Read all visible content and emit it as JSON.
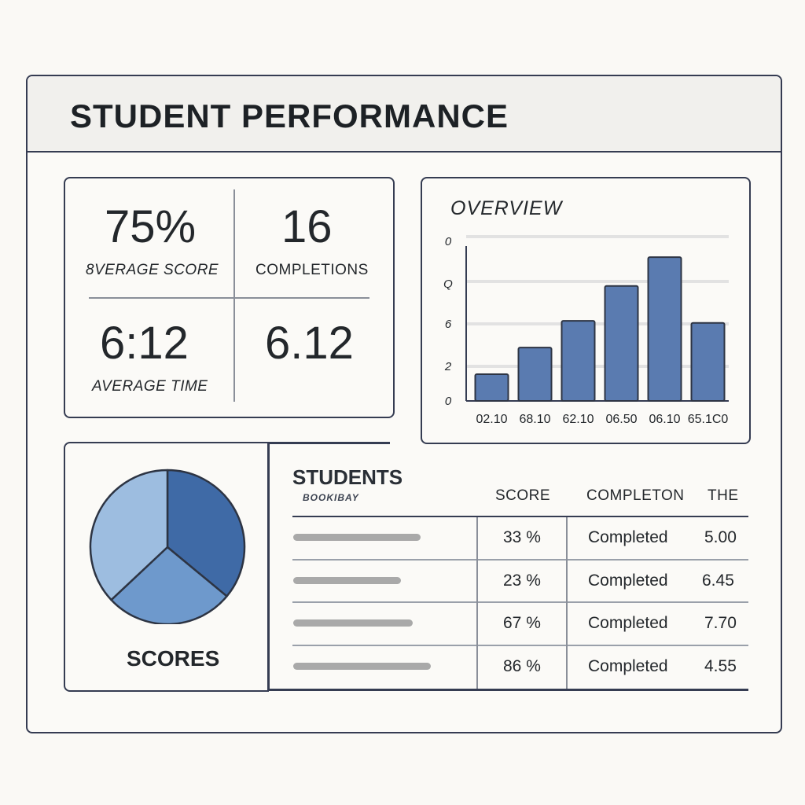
{
  "header": {
    "title": "STUDENT PERFORMANCE"
  },
  "stats": [
    {
      "value": "75%",
      "label": "8VERAGE SCORE"
    },
    {
      "value": "16",
      "label": "COMPLETIONS"
    },
    {
      "value": "6:12",
      "label": "AVERAGE TIME"
    },
    {
      "value": "6.12",
      "label": ""
    }
  ],
  "overview": {
    "title": "OVERVIEW",
    "y_tick_labels": [
      "0",
      "Q",
      "6",
      "2",
      "0"
    ],
    "x_tick_labels": [
      "02.10",
      "68.10",
      "62.10",
      "06.50",
      "06.10",
      "65.1C0"
    ]
  },
  "chart_data": [
    {
      "type": "bar",
      "title": "OVERVIEW",
      "categories": [
        "02.10",
        "68.10",
        "62.10",
        "06.50",
        "06.10",
        "65.1C0"
      ],
      "values": [
        1.3,
        2.6,
        3.9,
        5.6,
        7.0,
        3.8
      ],
      "ylim": [
        0,
        8
      ],
      "grid": true,
      "color": "#5a7bb0"
    },
    {
      "type": "pie",
      "title": "SCORES",
      "slices": [
        {
          "value": 36,
          "color": "#3f6aa6"
        },
        {
          "value": 27,
          "color": "#6e99cc"
        },
        {
          "value": 37,
          "color": "#9dbde0"
        }
      ]
    }
  ],
  "scores": {
    "label": "SCORES"
  },
  "students": {
    "title": "STUDENTS",
    "subtitle": "BOOKIBAY",
    "columns": [
      "SCORE",
      "COMPLETON",
      "THE"
    ],
    "rows": [
      {
        "score": "33 %",
        "status": "Completed",
        "time": "5.00"
      },
      {
        "score": "23 %",
        "status": "Completed",
        "time": "6.45"
      },
      {
        "score": "67 %",
        "status": "Completed",
        "time": "7.70"
      },
      {
        "score": "86 %",
        "status": "Completed",
        "time": "4.55"
      }
    ]
  },
  "colors": {
    "bar": "#5a7bb0",
    "border": "#353c52",
    "pie_dark": "#3f6aa6",
    "pie_mid": "#6e99cc",
    "pie_light": "#9dbde0"
  }
}
